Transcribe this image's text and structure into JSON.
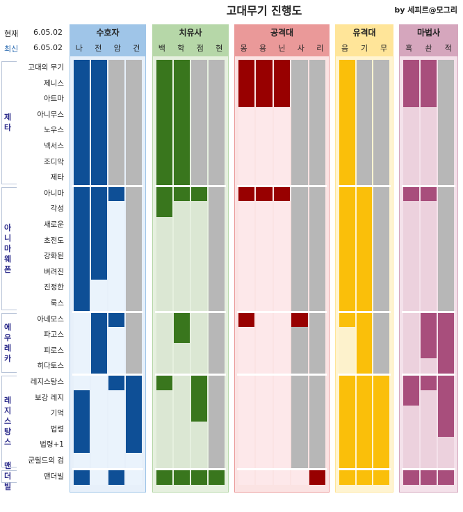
{
  "title": "고대무기 진행도",
  "byline": "by 세피르@모그리",
  "versions": [
    {
      "label": "현재",
      "value": "6.05.02"
    },
    {
      "label": "최신",
      "value": "6.05.02"
    }
  ],
  "colors": {
    "blue_dark": "#0e4f96",
    "blue_light": "#ebf3fc",
    "green_dark": "#39761d",
    "green_light": "#dbe7d3",
    "red_dark": "#980000",
    "red_light": "#fde8ea",
    "yellow_dark": "#fabf0a",
    "yellow_light": "#fdf2cc",
    "purple_dark": "#a84e7c",
    "purple_light": "#ecd1dd",
    "gray": "#b7b7b7"
  },
  "classes": [
    {
      "name": "수호자",
      "head_bg": "#9fc5e8",
      "box_bg": "#e7f0fa",
      "dark": "#0e4f96",
      "light": "#eaf3fc",
      "jobs": [
        "나",
        "전",
        "암",
        "건"
      ]
    },
    {
      "name": "치유사",
      "head_bg": "#b6d7a8",
      "box_bg": "#e6f0df",
      "dark": "#39761d",
      "light": "#dbe7d3",
      "jobs": [
        "백",
        "학",
        "점",
        "현"
      ]
    },
    {
      "name": "공격대",
      "head_bg": "#ea9999",
      "box_bg": "#fbe3e3",
      "dark": "#980000",
      "light": "#fde8ea",
      "jobs": [
        "몽",
        "용",
        "닌",
        "사",
        "리"
      ]
    },
    {
      "name": "유격대",
      "head_bg": "#ffe599",
      "box_bg": "#fff4d1",
      "dark": "#fabf0a",
      "light": "#fdf2cc",
      "jobs": [
        "음",
        "기",
        "무"
      ]
    },
    {
      "name": "마법사",
      "head_bg": "#d5a6bd",
      "box_bg": "#f4e1ea",
      "dark": "#a84e7c",
      "light": "#ecd1dd",
      "jobs": [
        "흑",
        "솬",
        "적"
      ]
    }
  ],
  "groups": [
    {
      "name": "제타",
      "items": [
        "고대의 무기",
        "제니스",
        "아트마",
        "아니무스",
        "노우스",
        "넥서스",
        "조디악",
        "제타"
      ]
    },
    {
      "name": "아니마 웨폰",
      "items": [
        "아니마",
        "각성",
        "새로운",
        "초전도",
        "강화된",
        "벼려진",
        "진정한",
        "룩스"
      ]
    },
    {
      "name": "에우레카",
      "items": [
        "아네모스",
        "파고스",
        "피로스",
        "히다토스"
      ]
    },
    {
      "name": "레지스탕스",
      "items": [
        "레지스탕스",
        "보강 레지",
        "기억",
        "법령",
        "법령+1",
        "군릴드의 검"
      ]
    },
    {
      "name": "맨더빌",
      "items": [
        "맨더빌"
      ]
    }
  ],
  "grid": {
    "legend": "d = 완료(진한색), l = 미완료(연한색), g = 해당 없음(회색)",
    "rows": [
      [
        "ddgg",
        "ddgg",
        "dddgg",
        "dgg",
        "ddg"
      ],
      [
        "ddgg",
        "ddgg",
        "dddgg",
        "dgg",
        "ddg"
      ],
      [
        "ddgg",
        "ddgg",
        "dddgg",
        "dgg",
        "ddg"
      ],
      [
        "ddgg",
        "ddgg",
        "lllgg",
        "dgg",
        "llg"
      ],
      [
        "ddgg",
        "ddgg",
        "lllgg",
        "dgg",
        "llg"
      ],
      [
        "ddgg",
        "ddgg",
        "lllgg",
        "dgg",
        "llg"
      ],
      [
        "ddgg",
        "ddgg",
        "lllgg",
        "dgg",
        "llg"
      ],
      [
        "ddgg",
        "ddgg",
        "lllgg",
        "dgg",
        "llg"
      ],
      [
        "dddg",
        "dddg",
        "dddgg",
        "ddg",
        "ddg"
      ],
      [
        "ddlg",
        "dllg",
        "lllgg",
        "ddg",
        "llg"
      ],
      [
        "ddlg",
        "lllg",
        "lllgg",
        "ddg",
        "llg"
      ],
      [
        "ddlg",
        "lllg",
        "lllgg",
        "ddg",
        "llg"
      ],
      [
        "ddlg",
        "lllg",
        "lllgg",
        "ddg",
        "llg"
      ],
      [
        "ddlg",
        "lllg",
        "lllgg",
        "ddg",
        "llg"
      ],
      [
        "dllg",
        "lllg",
        "lllgg",
        "ddg",
        "llg"
      ],
      [
        "dllg",
        "lllg",
        "lllgg",
        "ddg",
        "llg"
      ],
      [
        "lddg",
        "ldlg",
        "dlldg",
        "ddg",
        "ldd"
      ],
      [
        "ldlg",
        "ldlg",
        "lllgg",
        "ldg",
        "ldd"
      ],
      [
        "ldlg",
        "lllg",
        "lllgg",
        "ldg",
        "ldd"
      ],
      [
        "ldlg",
        "lllg",
        "lllgg",
        "ldg",
        "lld"
      ],
      [
        "lldd",
        "dldg",
        "lllgg",
        "ddd",
        "ddd"
      ],
      [
        "dlld",
        "lldg",
        "lllgg",
        "ddd",
        "dld"
      ],
      [
        "dlld",
        "lldg",
        "lllgg",
        "ddd",
        "lld"
      ],
      [
        "dlld",
        "lllg",
        "lllgg",
        "ddd",
        "lld"
      ],
      [
        "dlld",
        "lllg",
        "lllgg",
        "ddd",
        "lll"
      ],
      [
        "llll",
        "lllg",
        "lllgg",
        "ddd",
        "lll"
      ],
      [
        "dldl",
        "dddd",
        "lllld",
        "ddd",
        "ddd"
      ]
    ]
  }
}
